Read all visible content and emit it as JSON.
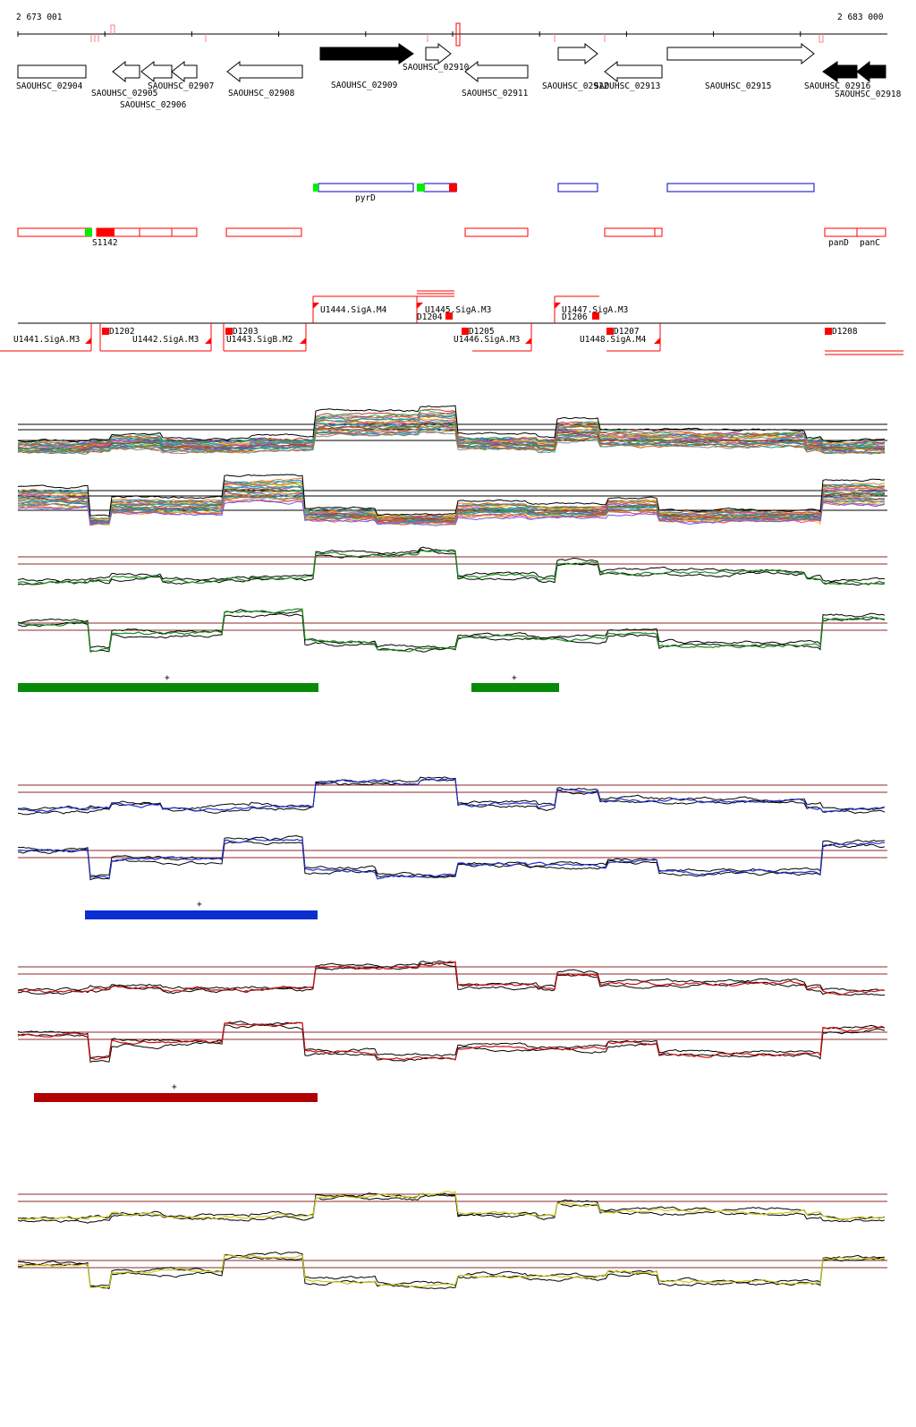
{
  "genome_browser": {
    "coord_start": "2 673 001",
    "coord_end": "2 683 000",
    "genes": [
      {
        "id": "gene-02904",
        "label": "SAOUHSC_02904",
        "dir": "none",
        "filled": false
      },
      {
        "id": "gene-02905",
        "label": "SAOUHSC_02905",
        "dir": "left",
        "filled": false
      },
      {
        "id": "gene-02906",
        "label": "SAOUHSC_02906",
        "dir": "left",
        "filled": false
      },
      {
        "id": "gene-02907",
        "label": "SAOUHSC_02907",
        "dir": "left",
        "filled": false
      },
      {
        "id": "gene-02908",
        "label": "SAOUHSC_02908",
        "dir": "left",
        "filled": false
      },
      {
        "id": "gene-02909",
        "label": "SAOUHSC_02909",
        "dir": "right",
        "filled": true
      },
      {
        "id": "gene-02910",
        "label": "SAOUHSC_02910",
        "dir": "right",
        "filled": false
      },
      {
        "id": "gene-02911",
        "label": "SAOUHSC_02911",
        "dir": "left",
        "filled": false
      },
      {
        "id": "gene-02912",
        "label": "SAOUHSC_02912",
        "dir": "right",
        "filled": false
      },
      {
        "id": "gene-02913",
        "label": "SAOUHSC_02913",
        "dir": "left",
        "filled": false
      },
      {
        "id": "gene-02915",
        "label": "SAOUHSC_02915",
        "dir": "right",
        "filled": false
      },
      {
        "id": "gene-02916",
        "label": "SAOUHSC_02916",
        "dir": "left",
        "filled": true
      },
      {
        "id": "gene-02918",
        "label": "SAOUHSC_02918",
        "dir": "left",
        "filled": true
      }
    ],
    "operon_labels": {
      "pyrD": "pyrD",
      "S1142": "S1142",
      "panD": "panD",
      "panC": "panC"
    },
    "features": {
      "U1441": "U1441.SigA.M3",
      "D1202": "D1202",
      "U1442": "U1442.SigA.M3",
      "D1203": "D1203",
      "U1443": "U1443.SigB.M2",
      "U1444": "U1444.SigA.M4",
      "U1445": "U1445.SigA.M3",
      "D1204": "D1204",
      "D1205": "D1205",
      "U1446": "U1446.SigA.M3",
      "U1447": "U1447.SigA.M3",
      "D1206": "D1206",
      "D1207": "D1207",
      "U1448": "U1448.SigA.M4",
      "D1208": "D1208"
    },
    "segment_marks": {
      "green_a": "+",
      "green_b": "+",
      "blue": "+",
      "red": "+"
    },
    "colors": {
      "gene_stroke": "#000000",
      "annotation_red": "#ff0000",
      "annotation_blue": "#0000cc",
      "annotation_green": "#00ee00",
      "guide_line": "#8b2a2a",
      "green_condition": "#1a8c1a",
      "green_bar": "#078a07",
      "blue_condition": "#2233cc",
      "blue_bar": "#0a2ed1",
      "red_condition": "#cc1111",
      "red_bar": "#b00000",
      "yellow_condition": "#c8c81a"
    }
  }
}
